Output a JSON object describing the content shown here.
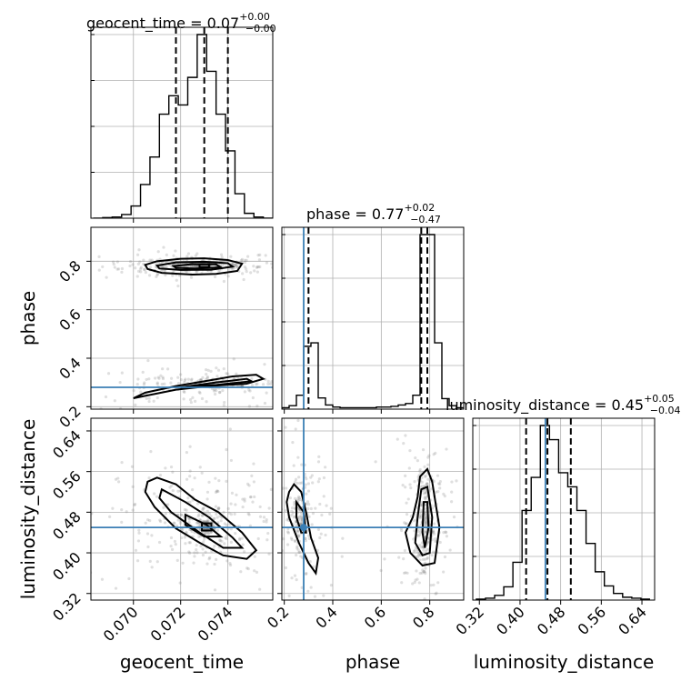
{
  "chart_data": {
    "type": "corner",
    "parameters": [
      "geocent_time",
      "phase",
      "luminosity_distance"
    ],
    "colors": {
      "hist": "#000000",
      "truth": "#3b7fb5",
      "samples": "#7f7f7f",
      "density_fill": [
        "#e0e0e0",
        "#a8a8a8",
        "#555555",
        "#111111"
      ]
    },
    "titles": [
      {
        "param": "geocent_time",
        "prefix": "geocent_time = 0.07",
        "sup": "+0.00",
        "sub": "−0.00"
      },
      {
        "param": "phase",
        "prefix": "phase = 0.77",
        "sup": "+0.02",
        "sub": "−0.47"
      },
      {
        "param": "luminosity_distance",
        "prefix": "luminosity_distance = 0.45",
        "sup": "+0.05",
        "sub": "−0.04"
      }
    ],
    "axes": {
      "geocent_time": {
        "range": [
          0.0682,
          0.0759
        ],
        "ticks": [
          0.07,
          0.072,
          0.074
        ],
        "tick_labels": [
          "0.070",
          "0.072",
          "0.074"
        ],
        "label": "geocent_time"
      },
      "phase": {
        "range": [
          0.19,
          0.94
        ],
        "ticks": [
          0.2,
          0.4,
          0.6,
          0.8
        ],
        "tick_labels": [
          "0.2",
          "0.4",
          "0.6",
          "0.8"
        ],
        "label": "phase"
      },
      "luminosity_distance": {
        "range": [
          0.307,
          0.665
        ],
        "ticks": [
          0.32,
          0.4,
          0.48,
          0.56,
          0.64
        ],
        "tick_labels": [
          "0.32",
          "0.40",
          "0.48",
          "0.56",
          "0.64"
        ],
        "label": "luminosity_distance"
      }
    },
    "truths": {
      "phase": 0.28,
      "luminosity_distance": 0.45
    },
    "quantiles": {
      "geocent_time": [
        0.0718,
        0.073,
        0.074
      ],
      "phase": [
        0.3,
        0.765,
        0.79
      ],
      "luminosity_distance": [
        0.412,
        0.454,
        0.5
      ]
    },
    "histograms": {
      "geocent_time": {
        "bin_edges": [
          0.0683,
          0.0687,
          0.0691,
          0.0695,
          0.0699,
          0.0703,
          0.0707,
          0.0711,
          0.0715,
          0.0719,
          0.0723,
          0.0727,
          0.0731,
          0.0735,
          0.0739,
          0.0743,
          0.0747,
          0.0751,
          0.0755,
          0.0759
        ],
        "counts": [
          0,
          1,
          2,
          6,
          20,
          55,
          100,
          170,
          200,
          185,
          230,
          300,
          240,
          170,
          110,
          40,
          8,
          2,
          0
        ]
      },
      "phase": {
        "bin_edges": [
          0.19,
          0.22,
          0.25,
          0.28,
          0.31,
          0.34,
          0.37,
          0.4,
          0.43,
          0.46,
          0.49,
          0.52,
          0.55,
          0.58,
          0.61,
          0.64,
          0.67,
          0.7,
          0.73,
          0.76,
          0.79,
          0.82,
          0.85,
          0.88,
          0.91,
          0.94
        ],
        "counts": [
          2,
          5,
          20,
          90,
          95,
          16,
          6,
          3,
          2,
          2,
          2,
          2,
          2,
          3,
          3,
          4,
          6,
          8,
          20,
          250,
          250,
          95,
          15,
          5,
          2
        ]
      },
      "luminosity_distance": {
        "bin_edges": [
          0.314,
          0.332,
          0.35,
          0.368,
          0.386,
          0.404,
          0.422,
          0.44,
          0.458,
          0.476,
          0.494,
          0.512,
          0.53,
          0.548,
          0.566,
          0.584,
          0.602,
          0.62,
          0.638,
          0.656
        ],
        "counts": [
          1,
          2,
          5,
          14,
          40,
          95,
          130,
          185,
          170,
          135,
          120,
          95,
          60,
          30,
          15,
          7,
          3,
          2,
          1
        ]
      }
    },
    "contours_2d": [
      {
        "x": "geocent_time",
        "y": "phase",
        "levels": [
          [
            [
              0.0705,
              0.785
            ],
            [
              0.071,
              0.8
            ],
            [
              0.072,
              0.81
            ],
            [
              0.073,
              0.812
            ],
            [
              0.074,
              0.805
            ],
            [
              0.0746,
              0.79
            ],
            [
              0.0744,
              0.76
            ],
            [
              0.0735,
              0.748
            ],
            [
              0.0725,
              0.745
            ],
            [
              0.0712,
              0.752
            ],
            [
              0.0706,
              0.768
            ]
          ],
          [
            [
              0.071,
              0.782
            ],
            [
              0.0718,
              0.795
            ],
            [
              0.073,
              0.798
            ],
            [
              0.074,
              0.792
            ],
            [
              0.0742,
              0.778
            ],
            [
              0.0733,
              0.765
            ],
            [
              0.072,
              0.764
            ],
            [
              0.0711,
              0.77
            ]
          ],
          [
            [
              0.0717,
              0.78
            ],
            [
              0.0725,
              0.788
            ],
            [
              0.0735,
              0.787
            ],
            [
              0.0737,
              0.775
            ],
            [
              0.0726,
              0.77
            ],
            [
              0.0718,
              0.773
            ]
          ],
          [
            [
              0.0728,
              0.787
            ],
            [
              0.0732,
              0.788
            ],
            [
              0.0732,
              0.775
            ],
            [
              0.0728,
              0.775
            ]
          ],
          [
            [
              0.07,
              0.235
            ],
            [
              0.0705,
              0.258
            ],
            [
              0.0718,
              0.285
            ],
            [
              0.073,
              0.305
            ],
            [
              0.0742,
              0.325
            ],
            [
              0.0752,
              0.332
            ],
            [
              0.0755,
              0.315
            ],
            [
              0.0748,
              0.295
            ],
            [
              0.0732,
              0.285
            ],
            [
              0.0718,
              0.27
            ],
            [
              0.0705,
              0.245
            ]
          ],
          [
            [
              0.072,
              0.28
            ],
            [
              0.0735,
              0.3
            ],
            [
              0.0748,
              0.315
            ],
            [
              0.075,
              0.305
            ],
            [
              0.0735,
              0.29
            ]
          ]
        ]
      },
      {
        "x": "geocent_time",
        "y": "luminosity_distance",
        "levels": [
          [
            [
              0.0706,
              0.54
            ],
            [
              0.071,
              0.548
            ],
            [
              0.0718,
              0.535
            ],
            [
              0.0726,
              0.505
            ],
            [
              0.0736,
              0.48
            ],
            [
              0.0746,
              0.44
            ],
            [
              0.0752,
              0.405
            ],
            [
              0.0748,
              0.388
            ],
            [
              0.0738,
              0.395
            ],
            [
              0.0728,
              0.42
            ],
            [
              0.0718,
              0.448
            ],
            [
              0.0709,
              0.49
            ],
            [
              0.0705,
              0.52
            ]
          ],
          [
            [
              0.0712,
              0.525
            ],
            [
              0.0722,
              0.5
            ],
            [
              0.0732,
              0.47
            ],
            [
              0.0742,
              0.43
            ],
            [
              0.0746,
              0.41
            ],
            [
              0.0738,
              0.41
            ],
            [
              0.0728,
              0.44
            ],
            [
              0.0716,
              0.48
            ],
            [
              0.0711,
              0.508
            ]
          ],
          [
            [
              0.0722,
              0.475
            ],
            [
              0.0731,
              0.455
            ],
            [
              0.0737,
              0.432
            ],
            [
              0.073,
              0.432
            ],
            [
              0.0722,
              0.455
            ]
          ],
          [
            [
              0.0729,
              0.458
            ],
            [
              0.0733,
              0.458
            ],
            [
              0.0733,
              0.444
            ],
            [
              0.0729,
              0.444
            ]
          ]
        ]
      },
      {
        "x": "phase",
        "y": "luminosity_distance",
        "levels": [
          [
            [
              0.22,
              0.52
            ],
            [
              0.24,
              0.535
            ],
            [
              0.27,
              0.52
            ],
            [
              0.29,
              0.48
            ],
            [
              0.31,
              0.43
            ],
            [
              0.34,
              0.39
            ],
            [
              0.33,
              0.36
            ],
            [
              0.3,
              0.38
            ],
            [
              0.26,
              0.42
            ],
            [
              0.22,
              0.47
            ],
            [
              0.21,
              0.5
            ]
          ],
          [
            [
              0.25,
              0.5
            ],
            [
              0.28,
              0.48
            ],
            [
              0.29,
              0.44
            ],
            [
              0.27,
              0.44
            ],
            [
              0.25,
              0.47
            ]
          ],
          [
            [
              0.76,
              0.55
            ],
            [
              0.79,
              0.565
            ],
            [
              0.81,
              0.54
            ],
            [
              0.84,
              0.45
            ],
            [
              0.82,
              0.38
            ],
            [
              0.77,
              0.375
            ],
            [
              0.72,
              0.4
            ],
            [
              0.7,
              0.44
            ],
            [
              0.73,
              0.47
            ],
            [
              0.75,
              0.51
            ]
          ],
          [
            [
              0.765,
              0.525
            ],
            [
              0.79,
              0.53
            ],
            [
              0.81,
              0.47
            ],
            [
              0.8,
              0.4
            ],
            [
              0.77,
              0.395
            ],
            [
              0.74,
              0.42
            ],
            [
              0.75,
              0.47
            ]
          ],
          [
            [
              0.775,
              0.5
            ],
            [
              0.79,
              0.5
            ],
            [
              0.795,
              0.45
            ],
            [
              0.78,
              0.41
            ],
            [
              0.77,
              0.44
            ]
          ]
        ]
      }
    ]
  }
}
